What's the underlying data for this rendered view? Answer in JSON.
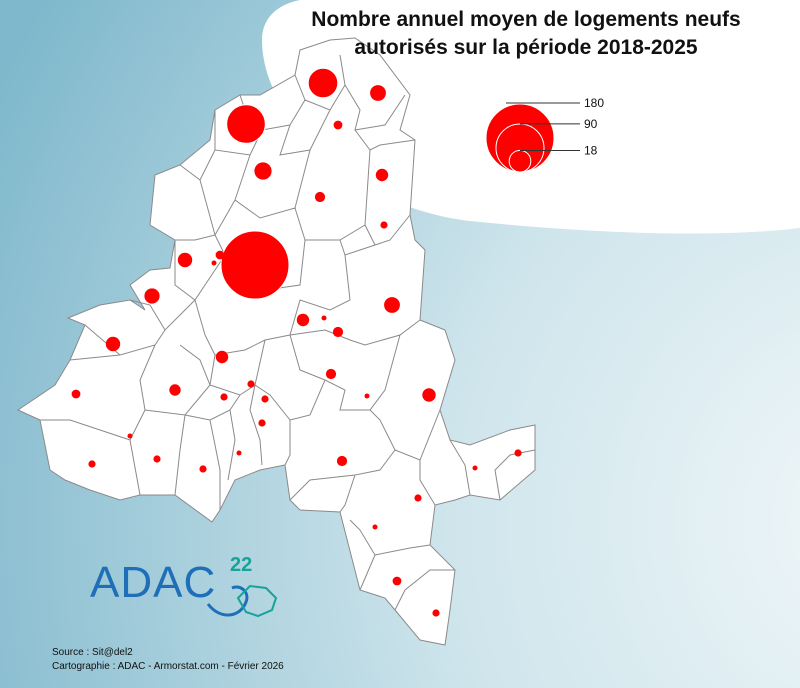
{
  "title": {
    "line1": "Nombre annuel moyen de logements neufs",
    "line2": "autorisés sur la période 2018-2025"
  },
  "legend": {
    "values": [
      180,
      90,
      18
    ],
    "labels": [
      "180",
      "90",
      "18"
    ],
    "color": "#ff0000"
  },
  "colors": {
    "bubble": "#ff0000",
    "commune_fill": "#ffffff",
    "commune_stroke": "#8a8a8a",
    "bg_dark": "#8fc2d3",
    "bg_light": "#eaf3f7",
    "logo_blue": "#1e6fb8",
    "logo_teal": "#17a29a"
  },
  "logo": {
    "text": "ADAC",
    "superscript": "22"
  },
  "source": "Source : Sit@del2",
  "credits": "Cartographie : ADAC - Armorstat.com - Février 2026",
  "communes": [
    {
      "value": 58
    },
    {
      "value": 34
    },
    {
      "value": 11
    },
    {
      "value": 3
    },
    {
      "value": 13
    },
    {
      "value": 4
    },
    {
      "value": 6
    },
    {
      "value": 180
    },
    {
      "value": 8
    },
    {
      "value": 3
    },
    {
      "value": 9
    },
    {
      "value": 2
    },
    {
      "value": 8
    },
    {
      "value": 11
    },
    {
      "value": 6
    },
    {
      "value": 4
    },
    {
      "value": 2
    },
    {
      "value": 6
    },
    {
      "value": 4
    },
    {
      "value": 5
    },
    {
      "value": 7
    },
    {
      "value": 3
    },
    {
      "value": 2
    },
    {
      "value": 2
    },
    {
      "value": 2
    },
    {
      "value": 1
    },
    {
      "value": 4
    },
    {
      "value": 2
    },
    {
      "value": 2
    },
    {
      "value": 2
    },
    {
      "value": 1
    },
    {
      "value": 1
    },
    {
      "value": 2
    },
    {
      "value": 1
    },
    {
      "value": 2
    },
    {
      "value": 1
    },
    {
      "value": 3
    },
    {
      "value": 2
    },
    {
      "value": 2
    },
    {
      "value": 1
    },
    {
      "value": 1
    }
  ]
}
